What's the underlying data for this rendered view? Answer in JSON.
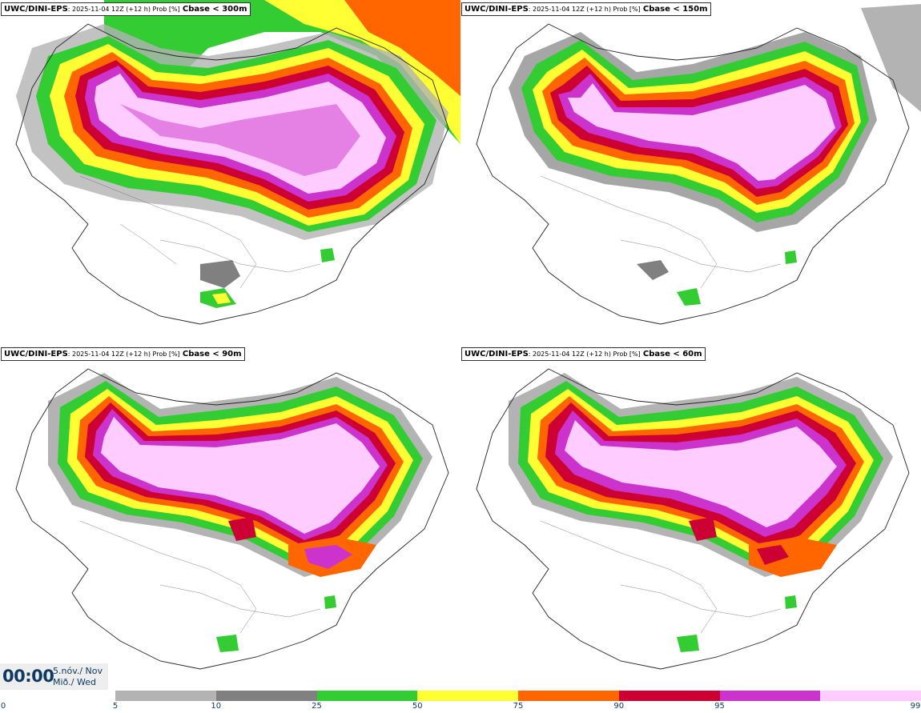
{
  "panels": [
    {
      "model": "UWC/DINI-EPS",
      "meta": ": 2025-11-04 12Z (+12 h) Prob [%]",
      "var": "Cbase < 300m"
    },
    {
      "model": "UWC/DINI-EPS",
      "meta": ": 2025-11-04 12Z (+12 h) Prob [%]",
      "var": "Cbase < 150m"
    },
    {
      "model": "UWC/DINI-EPS",
      "meta": ": 2025-11-04 12Z (+12 h) Prob [%]",
      "var": "Cbase < 90m"
    },
    {
      "model": "UWC/DINI-EPS",
      "meta": ": 2025-11-04 12Z (+12 h) Prob [%]",
      "var": "Cbase < 60m"
    }
  ],
  "time": {
    "clock": "00:00",
    "date_line1": "5.nóv./ Nov",
    "date_line2": "Mið./ Wed"
  },
  "legend": {
    "ticks": [
      "0",
      "5",
      "10",
      "25",
      "50",
      "75",
      "90",
      "95",
      "99"
    ],
    "colors": [
      "#b3b3b3",
      "#808080",
      "#33cc33",
      "#ffff33",
      "#ff6600",
      "#cc0033",
      "#cc33cc",
      "#ffccff"
    ]
  }
}
